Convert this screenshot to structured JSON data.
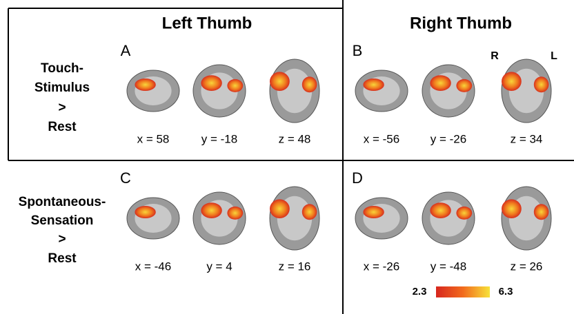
{
  "columns": [
    "Left Thumb",
    "Right Thumb"
  ],
  "row_labels": [
    [
      "Touch-",
      "Stimulus",
      ">",
      "Rest"
    ],
    [
      "Spontaneous-",
      "Sensation",
      ">",
      "Rest"
    ]
  ],
  "panels": [
    {
      "letter": "A",
      "coords": [
        "x = 58",
        "y = -18",
        "z = 48"
      ]
    },
    {
      "letter": "B",
      "coords": [
        "x = -56",
        "y = -26",
        "z = 34"
      ]
    },
    {
      "letter": "C",
      "coords": [
        "x = -46",
        "y = 4",
        "z = 16"
      ]
    },
    {
      "letter": "D",
      "coords": [
        "x = -26",
        "y = -48",
        "z = 26"
      ]
    }
  ],
  "orientation": [
    "R",
    "L"
  ],
  "colorbar": {
    "min": "2.3",
    "max": "6.3"
  }
}
